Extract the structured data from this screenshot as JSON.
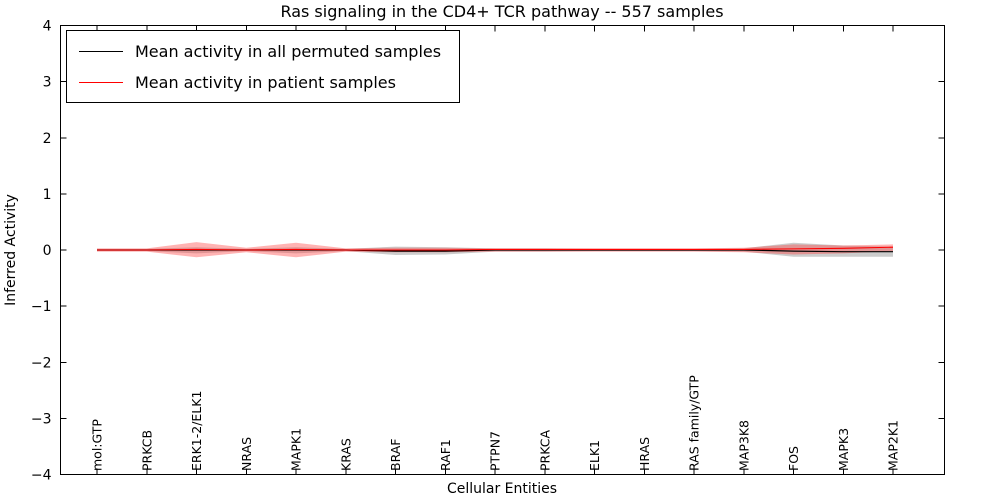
{
  "title": "Ras signaling in the CD4+ TCR pathway -- 557 samples",
  "xlabel": "Cellular Entities",
  "ylabel": "Inferred Activity",
  "legend": [
    {
      "label": "Mean activity in all permuted samples",
      "color": "#000000"
    },
    {
      "label": "Mean activity in patient samples",
      "color": "#ff0000"
    }
  ],
  "chart_data": {
    "type": "line",
    "title": "Ras signaling in the CD4+ TCR pathway -- 557 samples",
    "xlabel": "Cellular Entities",
    "ylabel": "Inferred Activity",
    "ylim": [
      -4,
      4
    ],
    "yticks": [
      4,
      3,
      2,
      1,
      0,
      -1,
      -2,
      -3,
      -4
    ],
    "ytick_labels": [
      "4",
      "3",
      "2",
      "1",
      "0",
      "−1",
      "−2",
      "−3",
      "−4"
    ],
    "grid": false,
    "legend_position": "upper left",
    "categories": [
      "mol:GTP",
      "PRKCB",
      "ERK1-2/ELK1",
      "NRAS",
      "MAPK1",
      "KRAS",
      "BRAF",
      "RAF1",
      "PTPN7",
      "PRKCA",
      "ELK1",
      "HRAS",
      "RAS family/GTP",
      "MAP3K8",
      "FOS",
      "MAPK3",
      "MAP2K1"
    ],
    "series": [
      {
        "id": "permuted",
        "name": "Mean activity in all permuted samples",
        "color": "#000000",
        "line_width": 1.2,
        "band_color": "#808080",
        "band_opacity": 0.4,
        "values": [
          0,
          0,
          0,
          0,
          0,
          0,
          -0.02,
          -0.02,
          0,
          0,
          0,
          0,
          0,
          0,
          -0.02,
          -0.03,
          -0.03
        ],
        "band_upper": [
          0.02,
          0.02,
          0.05,
          0.02,
          0.05,
          0.02,
          0.06,
          0.05,
          0.03,
          0.03,
          0.02,
          0.02,
          0.02,
          0.03,
          0.13,
          0.08,
          0.06
        ],
        "band_lower": [
          -0.02,
          -0.02,
          -0.06,
          -0.02,
          -0.06,
          -0.02,
          -0.09,
          -0.08,
          -0.03,
          -0.03,
          -0.02,
          -0.02,
          -0.02,
          -0.03,
          -0.12,
          -0.12,
          -0.12
        ]
      },
      {
        "id": "patient",
        "name": "Mean activity in patient samples",
        "color": "#ff0000",
        "line_width": 1.1,
        "band_color": "#ff4040",
        "band_opacity": 0.4,
        "values": [
          0,
          0,
          0.01,
          0,
          0.01,
          0,
          0,
          0,
          0.01,
          0.01,
          0.01,
          0.01,
          0.01,
          0.01,
          0.02,
          0.03,
          0.05
        ],
        "band_upper": [
          0.03,
          0.03,
          0.14,
          0.04,
          0.13,
          0.03,
          0.04,
          0.04,
          0.03,
          0.03,
          0.03,
          0.03,
          0.03,
          0.04,
          0.1,
          0.08,
          0.1
        ],
        "band_lower": [
          -0.03,
          -0.03,
          -0.13,
          -0.04,
          -0.13,
          -0.03,
          -0.04,
          -0.04,
          -0.03,
          -0.03,
          -0.03,
          -0.03,
          -0.03,
          -0.04,
          -0.08,
          -0.06,
          -0.02
        ]
      }
    ]
  }
}
